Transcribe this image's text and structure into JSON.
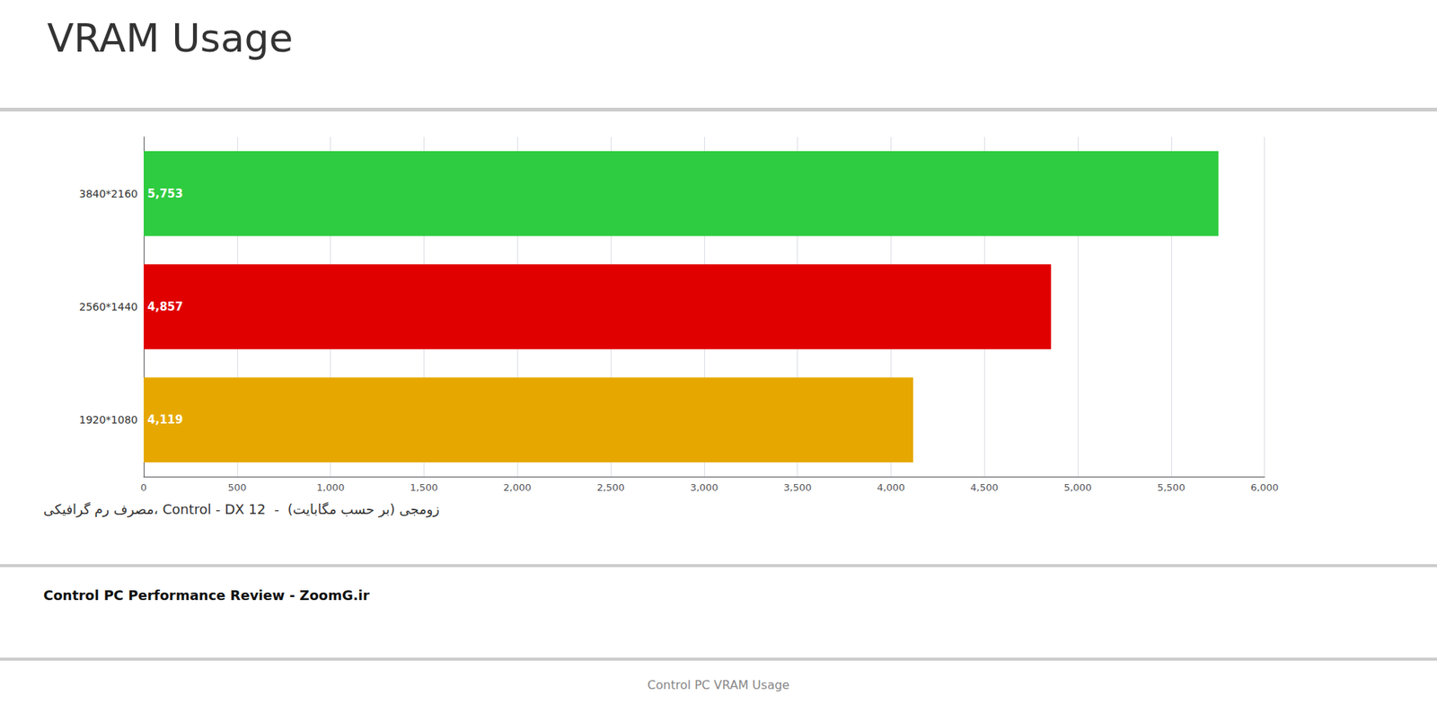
{
  "chart_data": {
    "type": "bar",
    "orientation": "horizontal",
    "title": "VRAM Usage",
    "categories": [
      "3840*2160",
      "2560*1440",
      "1920*1080"
    ],
    "values": [
      5753,
      4857,
      4119
    ],
    "value_labels": [
      "5,753",
      "4,857",
      "4,119"
    ],
    "colors": [
      "#2ecc40",
      "#e00000",
      "#e6a800"
    ],
    "data_labels": true,
    "xlim": [
      0,
      6000
    ],
    "xticks": [
      0,
      500,
      {
        "value": 1000,
        "label": "1,000"
      },
      {
        "value": 1500,
        "label": "1,500"
      },
      {
        "value": 2000,
        "label": "2,000"
      },
      {
        "value": 2500,
        "label": "2,500"
      },
      {
        "value": 3000,
        "label": "3,000"
      },
      {
        "value": 3500,
        "label": "3,500"
      },
      {
        "value": 4000,
        "label": "4,000"
      },
      {
        "value": 4500,
        "label": "4,500"
      },
      {
        "value": 5000,
        "label": "5,000"
      },
      {
        "value": 5500,
        "label": "5,500"
      },
      {
        "value": 6000,
        "label": "6,000"
      }
    ],
    "grid": true,
    "annotations": [
      "مصرف رم گرافیکی، Control - DX 12  -  زومجی (بر حسب مگابایت)",
      "Control PC Performance Review - ZoomG.ir",
      "Control PC VRAM Usage"
    ]
  }
}
